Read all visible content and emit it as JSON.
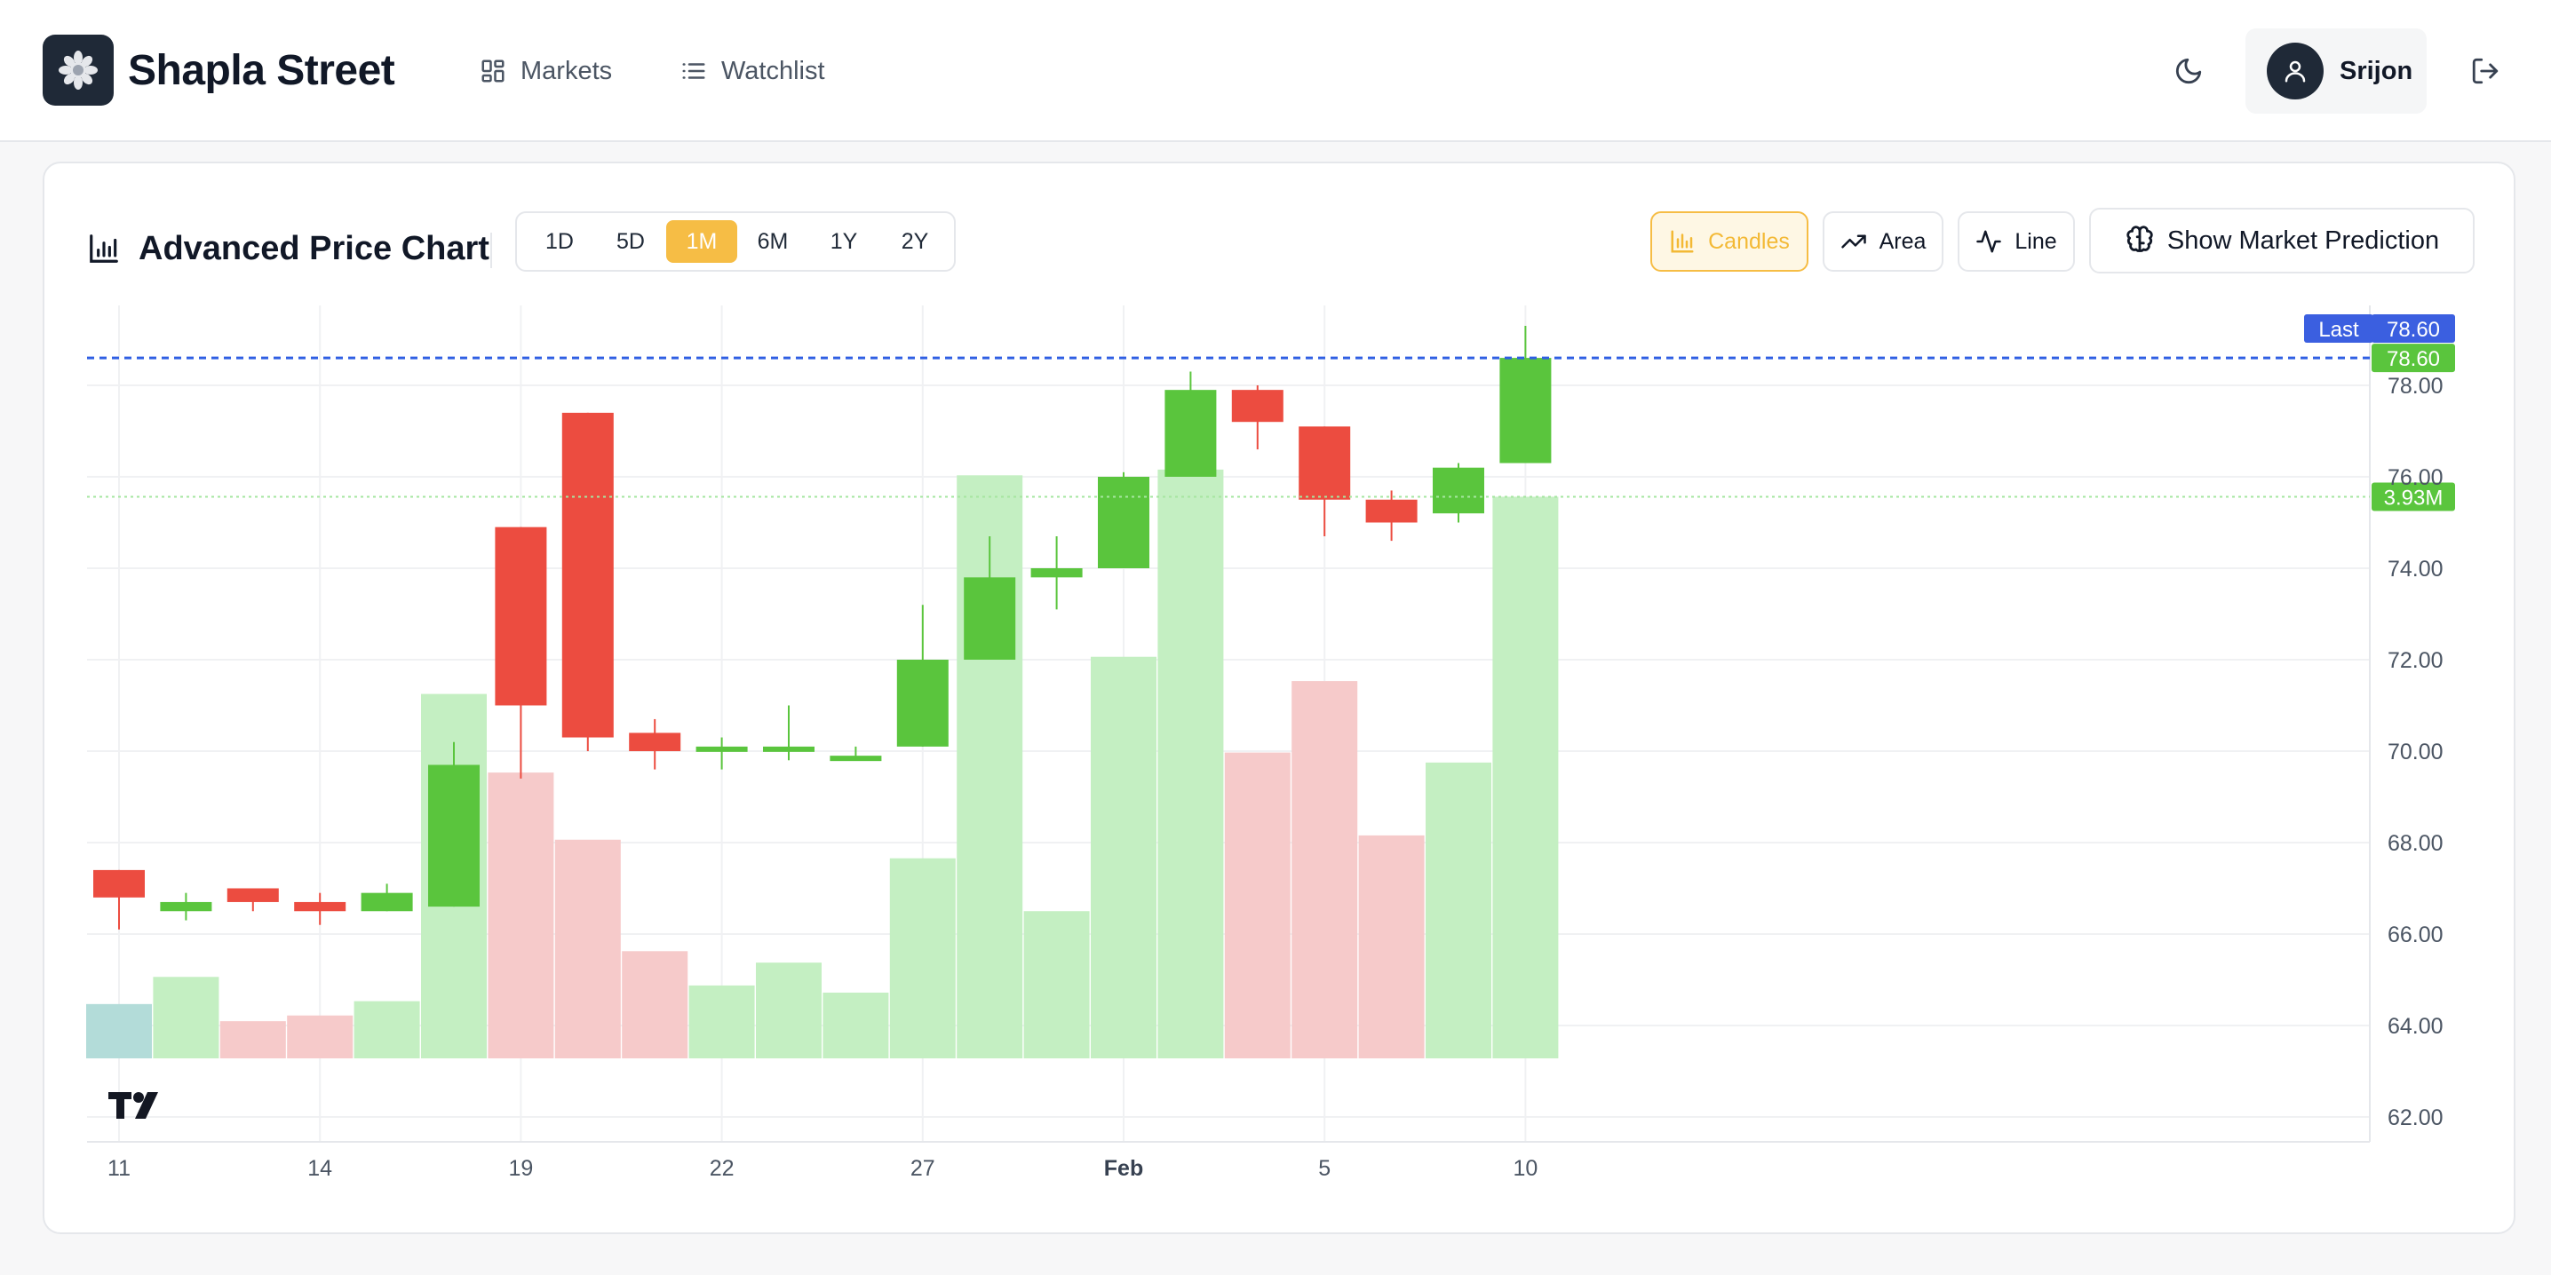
{
  "header": {
    "brand": "Shapla Street",
    "nav": [
      {
        "label": "Markets",
        "icon": "grid-icon"
      },
      {
        "label": "Watchlist",
        "icon": "list-icon"
      }
    ],
    "user_name": "Srijon"
  },
  "card": {
    "title": "Advanced Price Chart",
    "ranges": [
      {
        "label": "1D",
        "active": false
      },
      {
        "label": "5D",
        "active": false
      },
      {
        "label": "1M",
        "active": true
      },
      {
        "label": "6M",
        "active": false
      },
      {
        "label": "1Y",
        "active": false
      },
      {
        "label": "2Y",
        "active": false
      }
    ],
    "chart_types": [
      {
        "label": "Candles",
        "active": true
      },
      {
        "label": "Area",
        "active": false
      },
      {
        "label": "Line",
        "active": false
      }
    ],
    "prediction_label": "Show Market Prediction"
  },
  "chart_data": {
    "type": "candlestick",
    "ylim": [
      61.5,
      80.0
    ],
    "y_ticks": [
      "62.00",
      "64.00",
      "66.00",
      "68.00",
      "70.00",
      "72.00",
      "74.00",
      "76.00",
      "78.00"
    ],
    "x_tick_labels": [
      {
        "label": "11",
        "index": 0,
        "bold": false
      },
      {
        "label": "14",
        "index": 3,
        "bold": false
      },
      {
        "label": "19",
        "index": 6,
        "bold": false
      },
      {
        "label": "22",
        "index": 9,
        "bold": false
      },
      {
        "label": "27",
        "index": 12,
        "bold": false
      },
      {
        "label": "Feb",
        "index": 15,
        "bold": true
      },
      {
        "label": "5",
        "index": 18,
        "bold": false
      },
      {
        "label": "10",
        "index": 21,
        "bold": false
      }
    ],
    "last_label": "Last",
    "last_price": "78.60",
    "last_value": 78.6,
    "volume_label": "3.93M",
    "volume_max": 4.2,
    "volume_last": 3.93,
    "colors": {
      "up": "#5ac53d",
      "down": "#ec4c40",
      "last_line": "#2f5fe3",
      "last_badge": "#3b5fe0"
    },
    "candles": [
      {
        "open": 67.4,
        "high": 67.4,
        "low": 66.1,
        "close": 66.8,
        "volume": 0.38
      },
      {
        "open": 66.5,
        "high": 66.9,
        "low": 66.3,
        "close": 66.7,
        "volume": 0.57
      },
      {
        "open": 67.0,
        "high": 67.0,
        "low": 66.5,
        "close": 66.7,
        "volume": 0.26
      },
      {
        "open": 66.7,
        "high": 66.9,
        "low": 66.2,
        "close": 66.5,
        "volume": 0.3
      },
      {
        "open": 66.5,
        "high": 67.1,
        "low": 66.5,
        "close": 66.9,
        "volume": 0.4
      },
      {
        "open": 66.6,
        "high": 70.2,
        "low": 66.6,
        "close": 69.7,
        "volume": 2.55
      },
      {
        "open": 74.9,
        "high": 74.9,
        "low": 69.4,
        "close": 71.0,
        "volume": 2.0
      },
      {
        "open": 77.4,
        "high": 77.4,
        "low": 70.0,
        "close": 70.3,
        "volume": 1.53
      },
      {
        "open": 70.4,
        "high": 70.7,
        "low": 69.6,
        "close": 70.0,
        "volume": 0.75
      },
      {
        "open": 70.0,
        "high": 70.3,
        "low": 69.6,
        "close": 70.1,
        "volume": 0.51
      },
      {
        "open": 70.1,
        "high": 71.0,
        "low": 69.8,
        "close": 70.1,
        "volume": 0.67
      },
      {
        "open": 69.9,
        "high": 70.1,
        "low": 69.8,
        "close": 69.9,
        "volume": 0.46
      },
      {
        "open": 70.1,
        "high": 73.2,
        "low": 70.1,
        "close": 72.0,
        "volume": 1.4
      },
      {
        "open": 72.0,
        "high": 74.7,
        "low": 72.0,
        "close": 73.8,
        "volume": 4.08
      },
      {
        "open": 73.8,
        "high": 74.7,
        "low": 73.1,
        "close": 74.0,
        "volume": 1.03
      },
      {
        "open": 74.0,
        "high": 76.1,
        "low": 74.0,
        "close": 76.0,
        "volume": 2.81
      },
      {
        "open": 76.0,
        "high": 78.3,
        "low": 76.0,
        "close": 77.9,
        "volume": 4.12
      },
      {
        "open": 77.9,
        "high": 78.0,
        "low": 76.6,
        "close": 77.2,
        "volume": 2.14
      },
      {
        "open": 77.1,
        "high": 77.1,
        "low": 74.7,
        "close": 75.5,
        "volume": 2.64
      },
      {
        "open": 75.5,
        "high": 75.7,
        "low": 74.6,
        "close": 75.0,
        "volume": 1.56
      },
      {
        "open": 75.2,
        "high": 76.3,
        "low": 75.0,
        "close": 76.2,
        "volume": 2.07
      },
      {
        "open": 76.3,
        "high": 79.3,
        "low": 76.3,
        "close": 78.6,
        "volume": 3.93
      }
    ]
  }
}
